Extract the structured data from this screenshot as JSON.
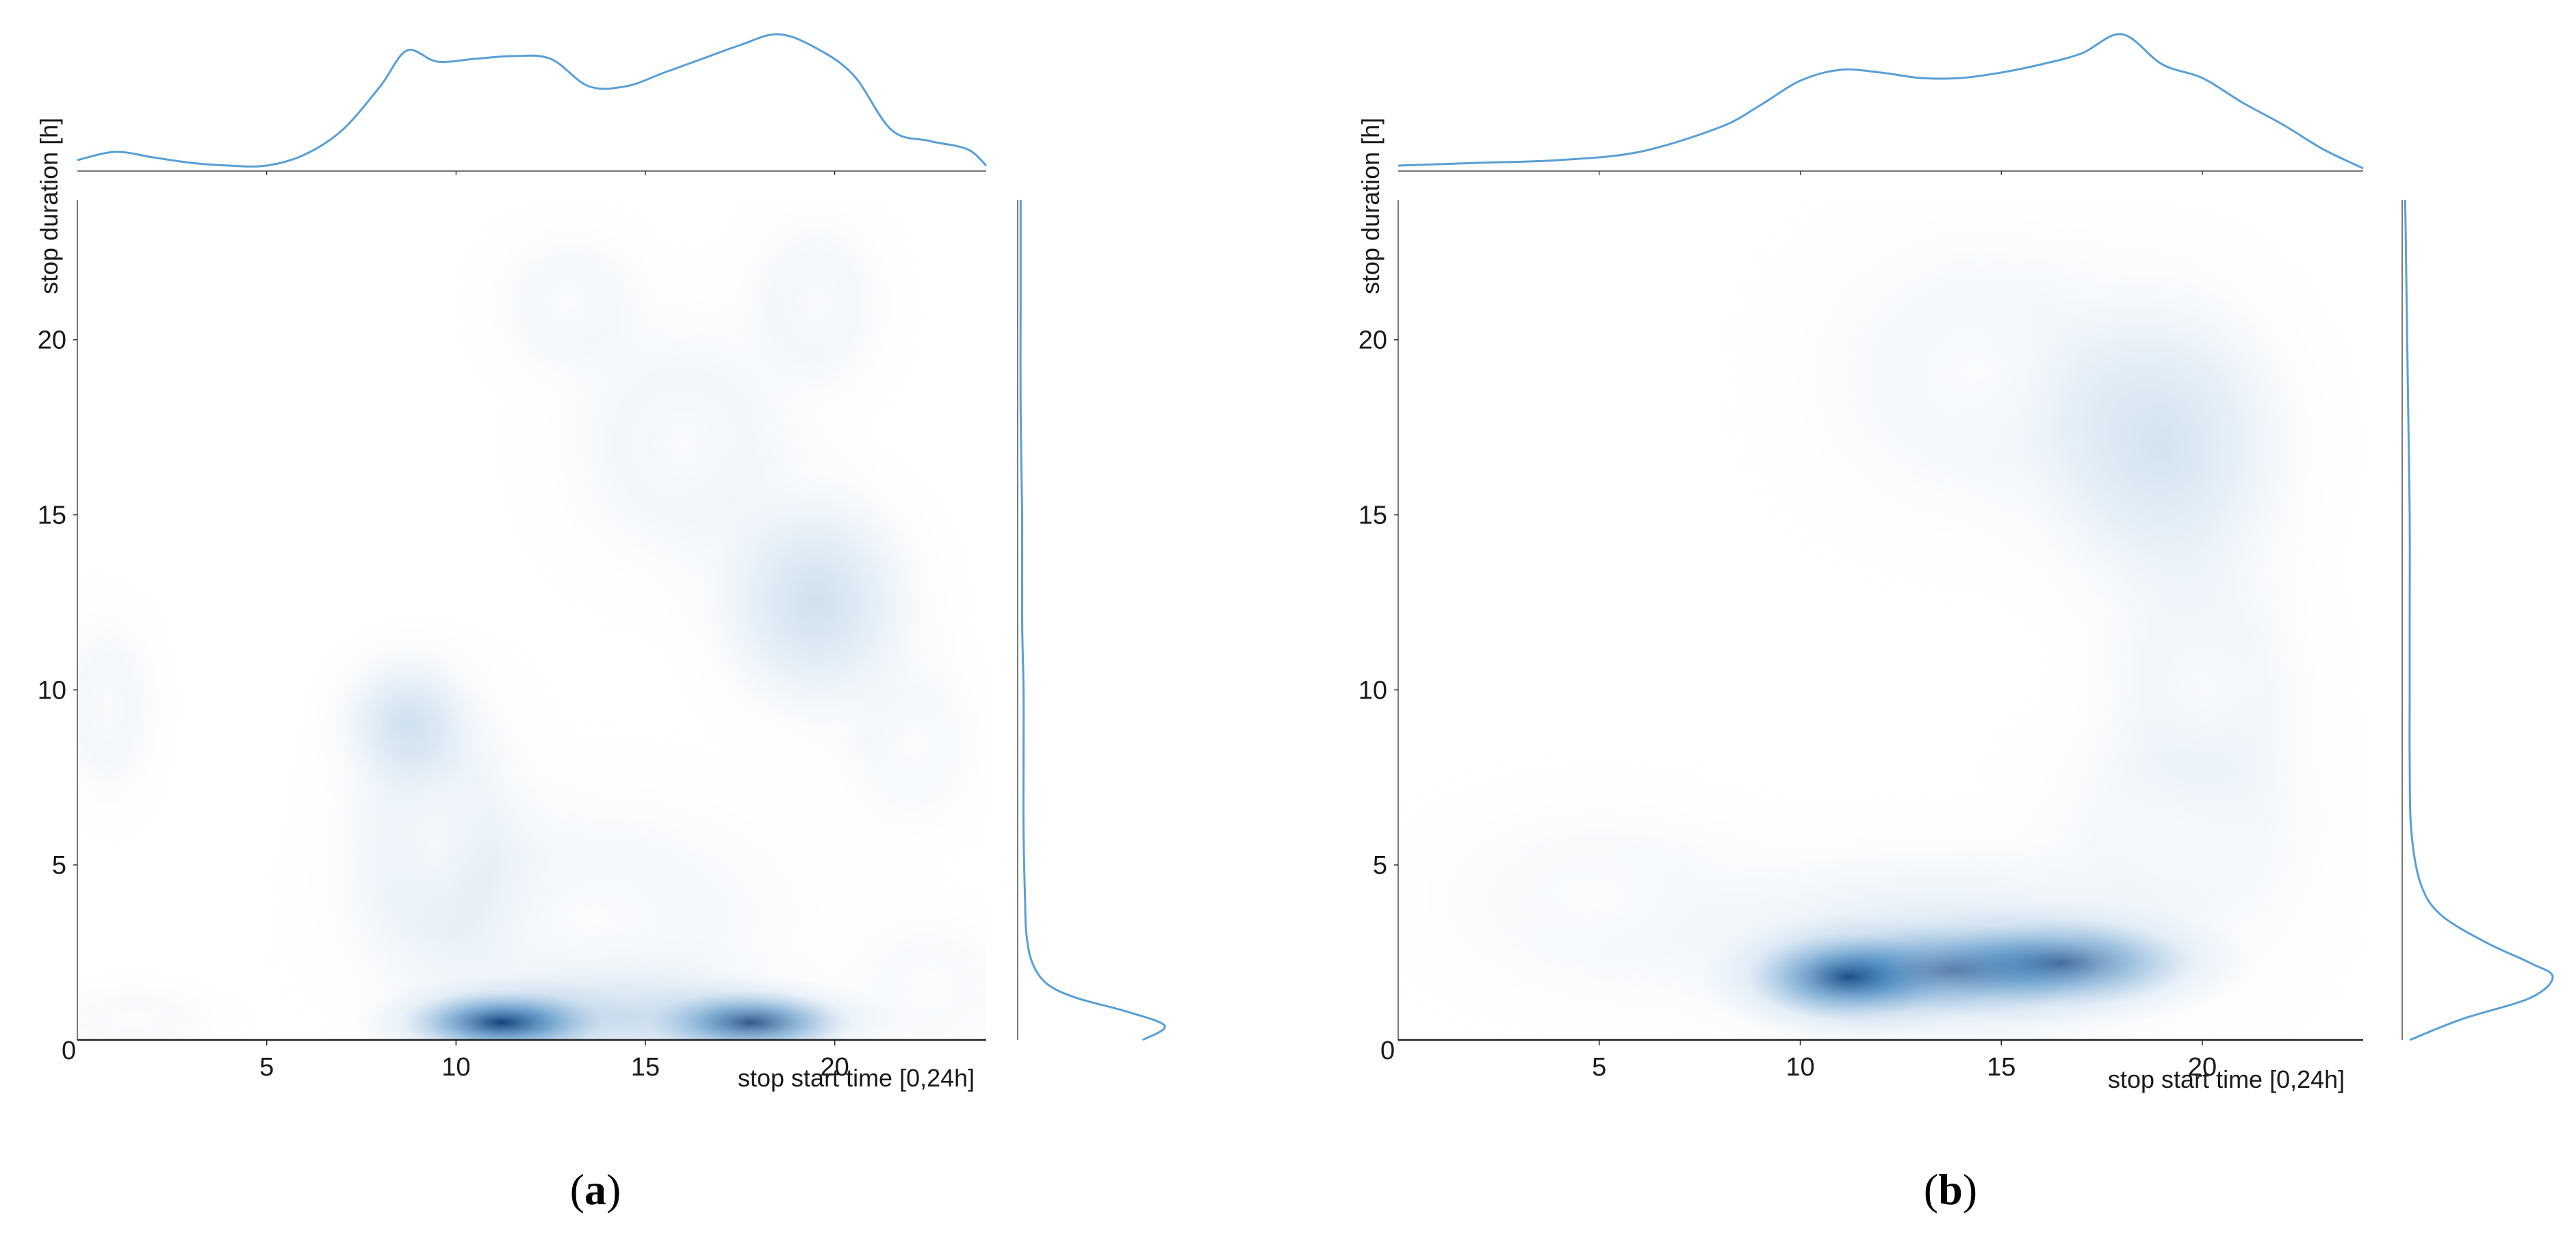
{
  "colors": {
    "density_peak": "#08306b",
    "density_mid": "#2171b5",
    "density_light": "#c6dbef",
    "marginal_line": "#5a9fd4",
    "axis": "#222222"
  },
  "chart_data": [
    {
      "type": "heatmap",
      "caption_letter": "a",
      "xlabel": "stop start time [0,24h]",
      "ylabel": "stop duration [h]",
      "xlim": [
        0,
        24
      ],
      "ylim": [
        0,
        24
      ],
      "x_ticks": [
        "5",
        "10",
        "15",
        "20"
      ],
      "y_ticks": [
        "0",
        "5",
        "10",
        "15",
        "20"
      ],
      "density_blobs": [
        {
          "x": 11.2,
          "y": 0.5,
          "sx": 1.6,
          "sy": 0.55,
          "w": 1.0
        },
        {
          "x": 17.8,
          "y": 0.5,
          "sx": 1.6,
          "sy": 0.55,
          "w": 0.85
        },
        {
          "x": 14.5,
          "y": 0.7,
          "sx": 3.2,
          "sy": 1.0,
          "w": 0.18
        },
        {
          "x": 8.7,
          "y": 9.1,
          "sx": 1.2,
          "sy": 1.3,
          "w": 0.2
        },
        {
          "x": 9.5,
          "y": 5.5,
          "sx": 1.8,
          "sy": 3.0,
          "w": 0.12
        },
        {
          "x": 13.5,
          "y": 3.5,
          "sx": 4.0,
          "sy": 2.5,
          "w": 0.08
        },
        {
          "x": 19.5,
          "y": 12.5,
          "sx": 1.8,
          "sy": 2.2,
          "w": 0.22
        },
        {
          "x": 16.0,
          "y": 17.0,
          "sx": 2.2,
          "sy": 2.6,
          "w": 0.1
        },
        {
          "x": 13.0,
          "y": 21.0,
          "sx": 1.4,
          "sy": 1.5,
          "w": 0.08
        },
        {
          "x": 19.5,
          "y": 21.0,
          "sx": 1.3,
          "sy": 1.8,
          "w": 0.09
        },
        {
          "x": 22.0,
          "y": 8.5,
          "sx": 1.3,
          "sy": 1.8,
          "w": 0.07
        },
        {
          "x": 0.8,
          "y": 9.5,
          "sx": 0.9,
          "sy": 1.8,
          "w": 0.09
        },
        {
          "x": 1.5,
          "y": 0.6,
          "sx": 1.5,
          "sy": 0.7,
          "w": 0.06
        },
        {
          "x": 22.5,
          "y": 1.5,
          "sx": 1.5,
          "sy": 1.5,
          "w": 0.06
        }
      ],
      "marginal_x": {
        "x": [
          0,
          1,
          2,
          3,
          4,
          5,
          6,
          7,
          8,
          8.7,
          9.5,
          10.5,
          11.5,
          12.5,
          13.5,
          14.5,
          15.5,
          16.5,
          17.5,
          18.5,
          19.5,
          20.5,
          21.5,
          22.5,
          23.5,
          24
        ],
        "y": [
          0.08,
          0.14,
          0.1,
          0.06,
          0.04,
          0.04,
          0.12,
          0.3,
          0.62,
          0.88,
          0.8,
          0.82,
          0.84,
          0.82,
          0.62,
          0.62,
          0.72,
          0.82,
          0.92,
          1.0,
          0.9,
          0.7,
          0.3,
          0.22,
          0.16,
          0.04
        ]
      },
      "marginal_y": {
        "y": [
          0,
          0.4,
          0.8,
          1.2,
          1.6,
          2.2,
          3,
          4,
          6,
          8,
          10,
          12,
          15,
          18,
          21,
          24
        ],
        "d": [
          0.85,
          1.0,
          0.75,
          0.4,
          0.2,
          0.1,
          0.06,
          0.05,
          0.04,
          0.04,
          0.04,
          0.03,
          0.03,
          0.02,
          0.02,
          0.02
        ]
      }
    },
    {
      "type": "heatmap",
      "caption_letter": "b",
      "xlabel": "stop start time [0,24h]",
      "ylabel": "stop duration [h]",
      "xlim": [
        0,
        24
      ],
      "ylim": [
        0,
        24
      ],
      "x_ticks": [
        "5",
        "10",
        "15",
        "20"
      ],
      "y_ticks": [
        "0",
        "5",
        "10",
        "15",
        "20"
      ],
      "density_blobs": [
        {
          "x": 11.2,
          "y": 1.8,
          "sx": 1.5,
          "sy": 0.75,
          "w": 1.0
        },
        {
          "x": 16.5,
          "y": 2.2,
          "sx": 2.0,
          "sy": 0.75,
          "w": 0.8
        },
        {
          "x": 13.8,
          "y": 2.0,
          "sx": 2.2,
          "sy": 0.8,
          "w": 0.55
        },
        {
          "x": 13.5,
          "y": 2.5,
          "sx": 4.5,
          "sy": 2.0,
          "w": 0.15
        },
        {
          "x": 19.0,
          "y": 17.0,
          "sx": 2.2,
          "sy": 3.0,
          "w": 0.2
        },
        {
          "x": 14.5,
          "y": 19.0,
          "sx": 3.0,
          "sy": 3.0,
          "w": 0.08
        },
        {
          "x": 20.0,
          "y": 10.0,
          "sx": 1.8,
          "sy": 3.0,
          "w": 0.09
        },
        {
          "x": 5.0,
          "y": 4.0,
          "sx": 3.0,
          "sy": 2.0,
          "w": 0.06
        },
        {
          "x": 19.5,
          "y": 6.0,
          "sx": 2.5,
          "sy": 2.5,
          "w": 0.07
        }
      ],
      "marginal_x": {
        "x": [
          0,
          2,
          4,
          6,
          8,
          9,
          10,
          11,
          12,
          13,
          14,
          15,
          16,
          17,
          18,
          19,
          20,
          21,
          22,
          23,
          24
        ],
        "y": [
          0.04,
          0.06,
          0.08,
          0.14,
          0.32,
          0.48,
          0.66,
          0.74,
          0.72,
          0.68,
          0.68,
          0.72,
          0.78,
          0.86,
          1.0,
          0.78,
          0.68,
          0.5,
          0.34,
          0.16,
          0.02
        ]
      },
      "marginal_y": {
        "y": [
          0,
          0.6,
          1.2,
          1.8,
          2.2,
          2.8,
          3.6,
          4.5,
          6,
          8,
          10,
          12,
          15,
          18,
          21,
          24
        ],
        "d": [
          0.05,
          0.4,
          0.85,
          1.0,
          0.85,
          0.55,
          0.25,
          0.12,
          0.06,
          0.05,
          0.05,
          0.05,
          0.05,
          0.04,
          0.03,
          0.02
        ]
      }
    }
  ]
}
